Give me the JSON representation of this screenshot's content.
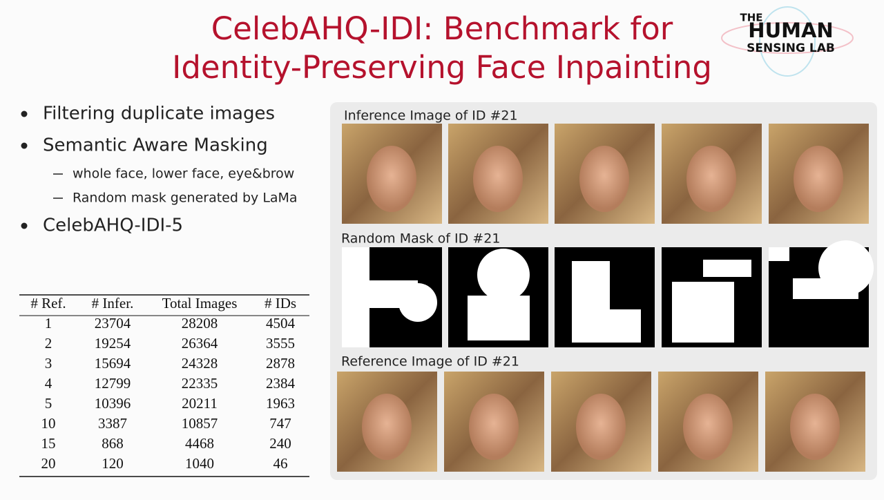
{
  "header": {
    "title_lines": [
      "CelebAHQ-IDI: Benchmark for",
      "Identity-Preserving Face Inpainting"
    ],
    "logo": [
      "THE",
      "HUMAN",
      "SENSING LAB"
    ]
  },
  "bullets": [
    {
      "text": "Filtering duplicate images",
      "sub": []
    },
    {
      "text": "Semantic Aware Masking",
      "sub": [
        "whole face, lower face, eye&brow",
        "Random mask generated by LaMa"
      ]
    },
    {
      "text": "CelebAHQ-IDI-5",
      "sub": []
    }
  ],
  "table": {
    "header": [
      "# Ref.",
      "# Infer.",
      "Total Images",
      "# IDs"
    ],
    "rows": [
      [
        1,
        23704,
        28208,
        4504
      ],
      [
        2,
        19254,
        26364,
        3555
      ],
      [
        3,
        15694,
        24328,
        2878
      ],
      [
        4,
        12799,
        22335,
        2384
      ],
      [
        5,
        10396,
        20211,
        1963
      ],
      [
        10,
        3387,
        10857,
        747
      ],
      [
        15,
        868,
        4468,
        240
      ],
      [
        20,
        120,
        1040,
        46
      ]
    ]
  },
  "panel": {
    "labels": [
      "Inference Image of ID #21",
      "Random Mask of ID #21",
      "Reference Image of ID #21"
    ]
  }
}
